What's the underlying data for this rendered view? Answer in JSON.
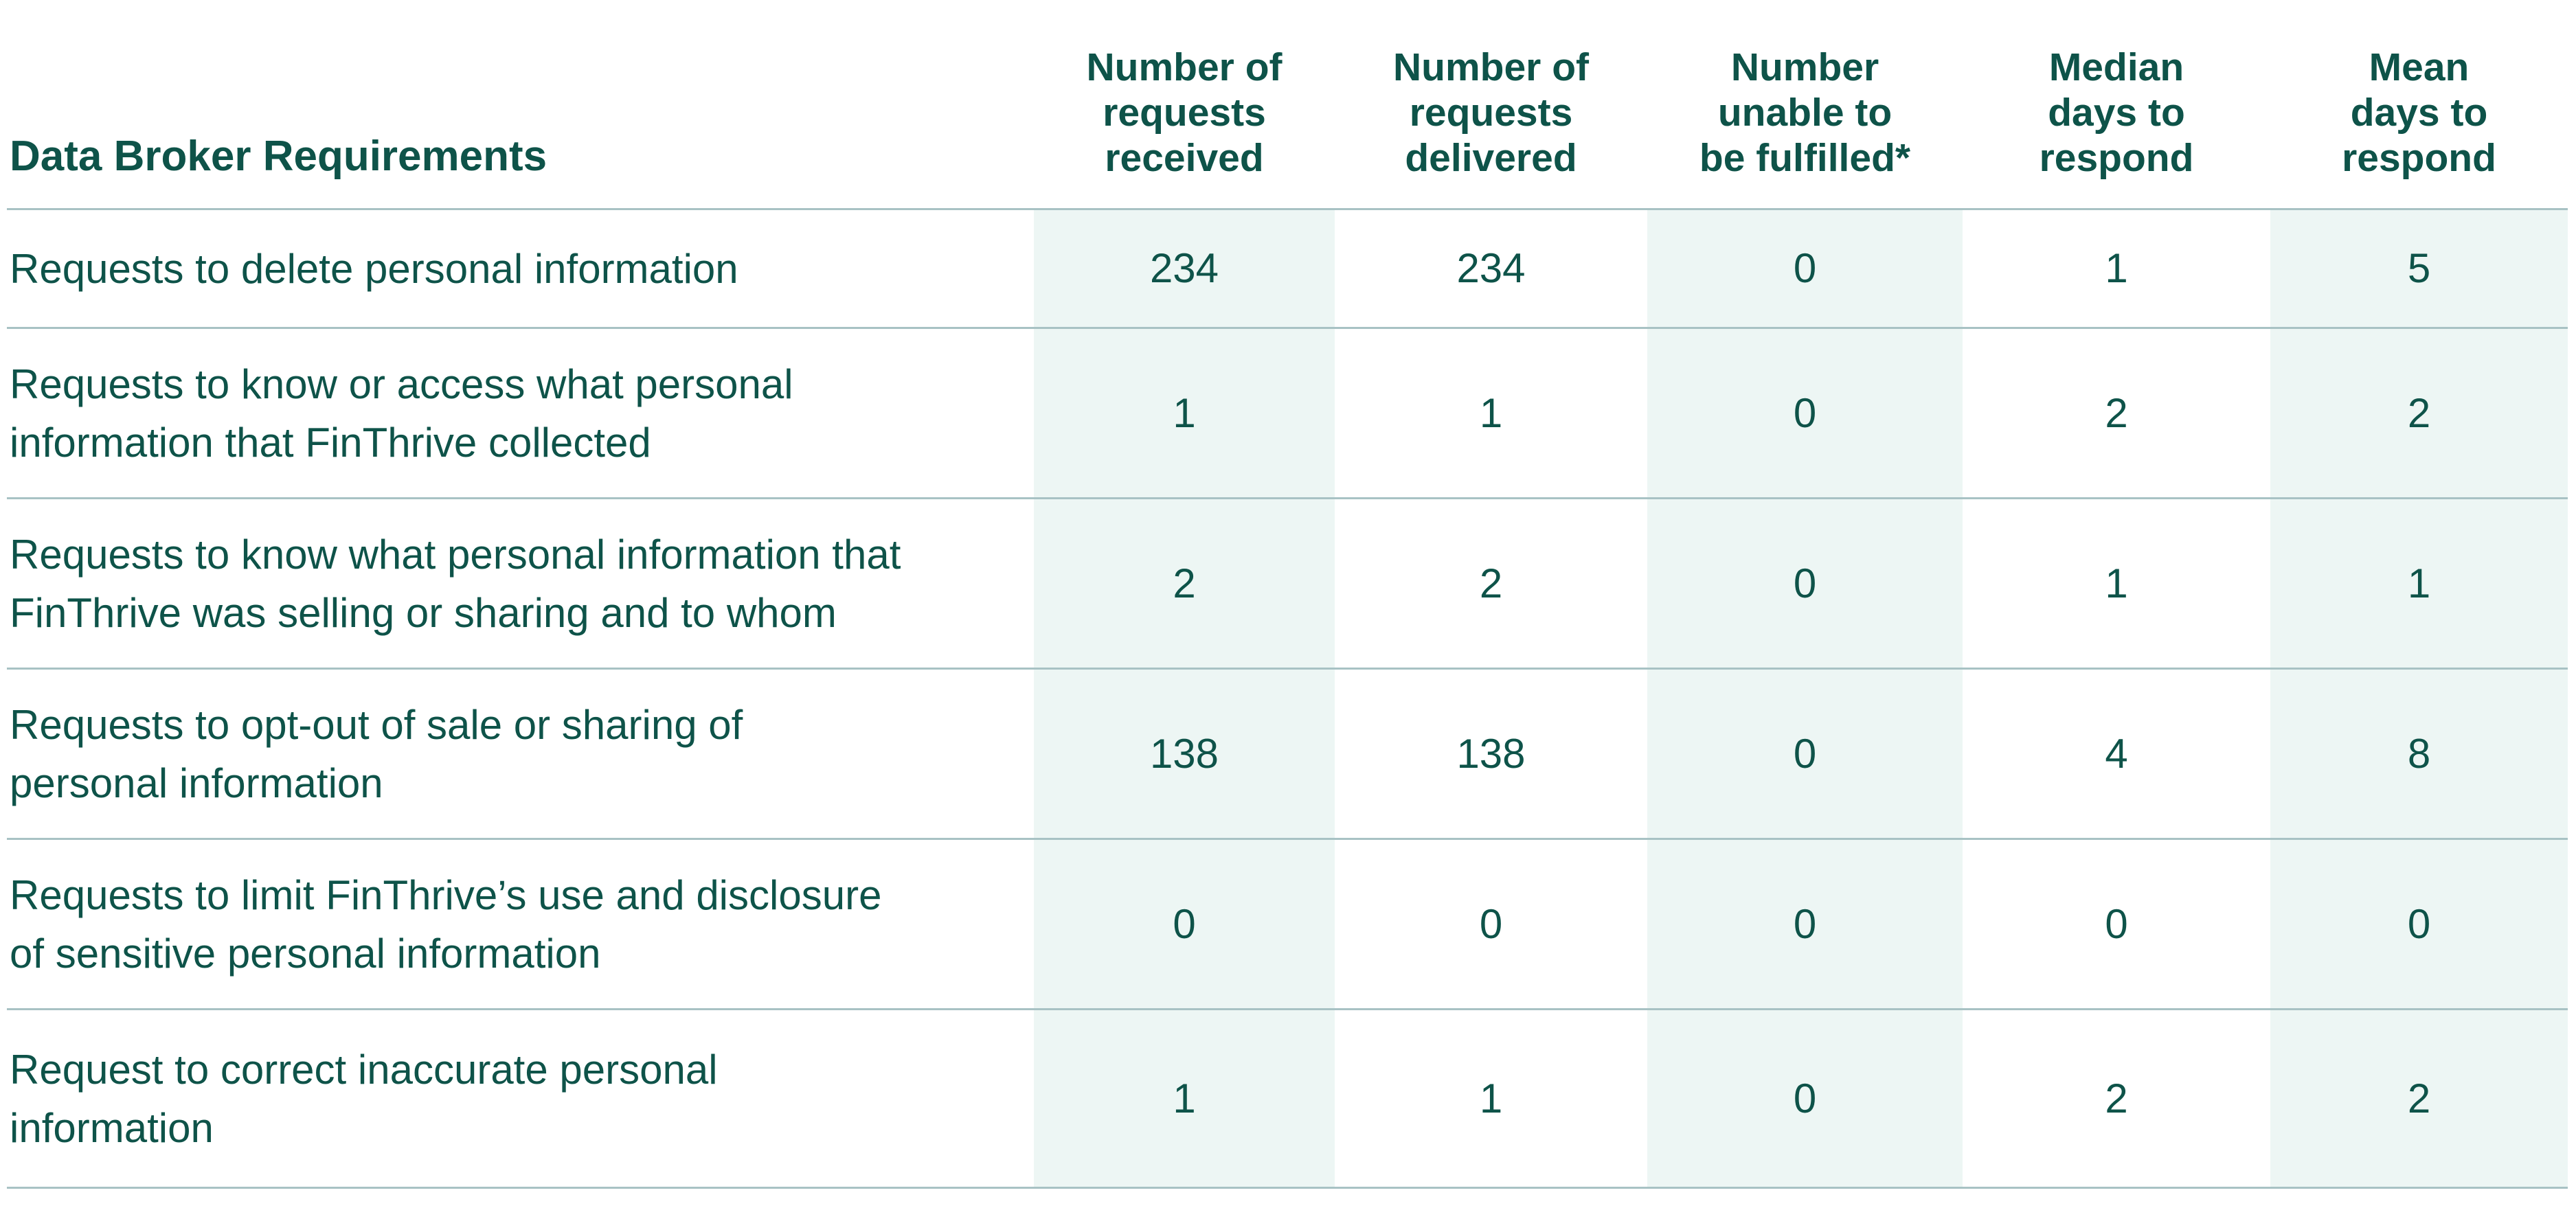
{
  "table": {
    "title": "Data Broker Requirements",
    "colors": {
      "text": "#0E5349",
      "column_tint": "#EDF6F4",
      "rule": "#A8C2C4"
    },
    "columns": [
      {
        "label": "Number of\nrequests\nreceived"
      },
      {
        "label": "Number of\nrequests\ndelivered"
      },
      {
        "label": "Number\nunable to\nbe fulfilled*"
      },
      {
        "label": "Median\ndays to\nrespond"
      },
      {
        "label": "Mean\ndays to\nrespond"
      }
    ],
    "rows": [
      {
        "label": "Requests to delete personal information",
        "values": [
          "234",
          "234",
          "0",
          "1",
          "5"
        ]
      },
      {
        "label": "Requests to know or access what personal\ninformation that FinThrive collected",
        "values": [
          "1",
          "1",
          "0",
          "2",
          "2"
        ]
      },
      {
        "label": "Requests to know what personal information that\nFinThrive was selling or sharing and to whom",
        "values": [
          "2",
          "2",
          "0",
          "1",
          "1"
        ]
      },
      {
        "label": "Requests to opt-out of sale or sharing of\npersonal information",
        "values": [
          "138",
          "138",
          "0",
          "4",
          "8"
        ]
      },
      {
        "label": "Requests to limit FinThrive’s use and disclosure\nof sensitive personal information",
        "values": [
          "0",
          "0",
          "0",
          "0",
          "0"
        ]
      },
      {
        "label": "Request to correct inaccurate personal\ninformation",
        "values": [
          "1",
          "1",
          "0",
          "2",
          "2"
        ]
      }
    ]
  }
}
